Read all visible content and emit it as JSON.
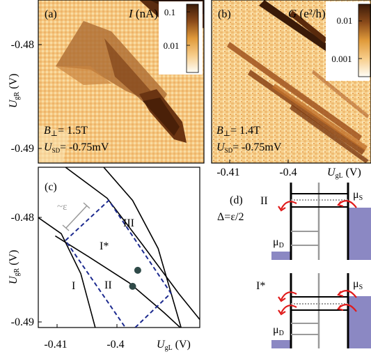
{
  "chart_data": [
    {
      "panel": "(a)",
      "type": "heatmap",
      "quantity": "I",
      "unit": "(nA)",
      "colorbar_ticks": [
        "0.1",
        "0.01"
      ],
      "colorbar_scale": "log",
      "field_label": "B",
      "field_sub": "⊥",
      "field_value": "= 1.5T",
      "bias_label": "U",
      "bias_sub": "SD",
      "bias_value": "= -0.75mV",
      "yaxis_label": "U",
      "yaxis_sub": "gR",
      "yaxis_unit": "(V)",
      "yticks": [
        "-0.48",
        "-0.49"
      ]
    },
    {
      "panel": "(b)",
      "type": "heatmap",
      "quantity": "G",
      "unit": "(e²/h)",
      "colorbar_ticks": [
        "0.01",
        "0.001"
      ],
      "colorbar_scale": "log",
      "field_label": "B",
      "field_sub": "⊥",
      "field_value": "= 1.4T",
      "bias_label": "U",
      "bias_sub": "SD",
      "bias_value": "= -0.75mV",
      "xticks": [
        "-0.41",
        "-0.4"
      ],
      "xaxis_label": "U",
      "xaxis_sub": "gL",
      "xaxis_unit": "(V)"
    },
    {
      "panel": "(c)",
      "type": "line",
      "xlim": [
        -0.4125,
        -0.3935
      ],
      "ylim": [
        -0.4905,
        -0.4765
      ],
      "xticks": [
        "-0.41",
        "-0.4"
      ],
      "yticks": [
        "-0.48",
        "-0.49"
      ],
      "xaxis_label": "U",
      "xaxis_sub": "gL",
      "xaxis_unit": "(V)",
      "yaxis_label": "U",
      "yaxis_sub": "gR",
      "yaxis_unit": "(V)",
      "series": [
        {
          "name": "I",
          "x": [
            -0.4125,
            -0.4098,
            -0.4075,
            -0.4058
          ],
          "y": [
            -0.4809,
            -0.4823,
            -0.4858,
            -0.4905
          ]
        },
        {
          "name": "II",
          "x": [
            -0.4105,
            -0.4064,
            -0.4018,
            -0.3977,
            -0.3958
          ],
          "y": [
            -0.4825,
            -0.4844,
            -0.4866,
            -0.4892,
            -0.4905
          ]
        },
        {
          "name": "III",
          "x": [
            -0.4093,
            -0.4044,
            -0.4003,
            -0.3959,
            -0.3935
          ],
          "y": [
            -0.4765,
            -0.4792,
            -0.4832,
            -0.4876,
            -0.4898
          ]
        },
        {
          "name": "",
          "x": [
            -0.4048,
            -0.4014,
            -0.3984,
            -0.3957
          ],
          "y": [
            -0.4765,
            -0.4794,
            -0.4836,
            -0.4905
          ]
        }
      ],
      "dashed_outline": {
        "x": [
          -0.4093,
          -0.4042,
          -0.3969,
          -0.4018,
          -0.4093
        ],
        "y": [
          -0.4829,
          -0.4794,
          -0.4875,
          -0.491,
          -0.4829
        ]
      },
      "points": [
        {
          "x": [
            -0.4008,
            -0.4014
          ],
          "y": [
            -0.4855,
            -0.4869
          ]
        }
      ],
      "labels": {
        "I": "I",
        "I_star": "I*",
        "II": "II",
        "III": "III",
        "epsilon": "~ε"
      }
    }
  ],
  "diagram_d": {
    "panel": "(d)",
    "delta": "Δ=ε/2",
    "top_label": "II",
    "bottom_label": "I*",
    "mu_s": "μ",
    "mu_s_sub": "S",
    "mu_d": "μ",
    "mu_d_sub": "D"
  },
  "colors": {
    "map_bg": "#f4c27d",
    "map_light": "#fbe6b5",
    "map_dark": "#4a2510",
    "map_mid": "#c07030",
    "lead_fill": "#8b88c3",
    "arrow": "#e01b1b",
    "dash_line": "#1c2a8f",
    "grey": "#9a9a9a",
    "dot": "#2f4a48"
  }
}
